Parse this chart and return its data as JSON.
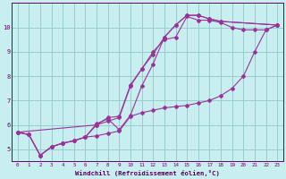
{
  "bg_color": "#c8eef0",
  "line_color": "#993399",
  "grid_color": "#99cccc",
  "xlabel": "Windchill (Refroidissement éolien,°C)",
  "ylabel_ticks": [
    5,
    6,
    7,
    8,
    9,
    10
  ],
  "xlim": [
    -0.5,
    23.5
  ],
  "ylim": [
    4.5,
    11.0
  ],
  "xticks": [
    0,
    1,
    2,
    3,
    4,
    5,
    6,
    7,
    8,
    9,
    10,
    11,
    12,
    13,
    14,
    15,
    16,
    17,
    18,
    19,
    20,
    21,
    22,
    23
  ],
  "lines": [
    [
      [
        0,
        5.7
      ],
      [
        1,
        5.6
      ],
      [
        2,
        4.75
      ],
      [
        3,
        5.1
      ],
      [
        4,
        5.25
      ],
      [
        5,
        5.35
      ],
      [
        6,
        5.5
      ],
      [
        7,
        5.55
      ],
      [
        8,
        5.65
      ],
      [
        9,
        5.75
      ],
      [
        10,
        6.35
      ],
      [
        11,
        6.5
      ],
      [
        12,
        6.6
      ],
      [
        13,
        6.7
      ],
      [
        14,
        6.75
      ],
      [
        15,
        6.8
      ],
      [
        16,
        6.9
      ],
      [
        17,
        7.0
      ],
      [
        18,
        7.2
      ],
      [
        19,
        7.5
      ],
      [
        20,
        8.0
      ],
      [
        21,
        9.0
      ],
      [
        22,
        9.9
      ],
      [
        23,
        10.1
      ]
    ],
    [
      [
        0,
        5.7
      ],
      [
        1,
        5.6
      ],
      [
        2,
        4.75
      ],
      [
        3,
        5.1
      ],
      [
        4,
        5.25
      ],
      [
        5,
        5.35
      ],
      [
        6,
        5.5
      ],
      [
        7,
        6.0
      ],
      [
        8,
        6.15
      ],
      [
        9,
        6.3
      ],
      [
        10,
        7.6
      ],
      [
        11,
        8.3
      ],
      [
        12,
        9.0
      ],
      [
        13,
        9.5
      ],
      [
        14,
        9.6
      ],
      [
        15,
        10.45
      ],
      [
        16,
        10.3
      ],
      [
        17,
        10.3
      ],
      [
        18,
        10.2
      ],
      [
        19,
        10.0
      ],
      [
        20,
        9.9
      ],
      [
        21,
        9.9
      ],
      [
        22,
        9.9
      ],
      [
        23,
        10.1
      ]
    ],
    [
      [
        0,
        5.7
      ],
      [
        1,
        5.6
      ],
      [
        2,
        4.75
      ],
      [
        3,
        5.1
      ],
      [
        4,
        5.25
      ],
      [
        5,
        5.35
      ],
      [
        6,
        5.5
      ],
      [
        7,
        6.05
      ],
      [
        8,
        6.25
      ],
      [
        9,
        5.8
      ],
      [
        10,
        6.4
      ],
      [
        11,
        7.6
      ],
      [
        12,
        8.5
      ],
      [
        13,
        9.6
      ],
      [
        14,
        10.1
      ],
      [
        15,
        10.5
      ],
      [
        16,
        10.5
      ],
      [
        17,
        10.35
      ],
      [
        18,
        10.25
      ],
      [
        23,
        10.1
      ]
    ],
    [
      [
        0,
        5.7
      ],
      [
        7,
        6.0
      ],
      [
        8,
        6.3
      ],
      [
        9,
        6.35
      ],
      [
        10,
        7.65
      ],
      [
        11,
        8.3
      ],
      [
        12,
        8.9
      ],
      [
        13,
        9.6
      ],
      [
        14,
        10.1
      ],
      [
        15,
        10.5
      ],
      [
        16,
        10.5
      ],
      [
        17,
        10.35
      ],
      [
        18,
        10.25
      ],
      [
        23,
        10.1
      ]
    ]
  ]
}
